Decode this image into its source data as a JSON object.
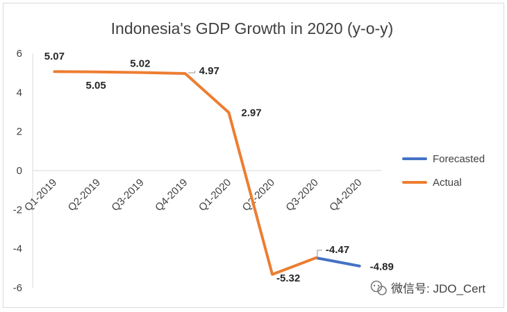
{
  "chart_data": {
    "type": "line",
    "title": "Indonesia's GDP Growth in 2020 (y-o-y)",
    "xlabel": "",
    "ylabel": "",
    "categories": [
      "Q1-2019",
      "Q2-2019",
      "Q3-2019",
      "Q4-2019",
      "Q1-2020",
      "Q2-2020",
      "Q3-2020",
      "Q4-2020"
    ],
    "ylim": [
      -6,
      6
    ],
    "yticks": [
      6,
      4,
      2,
      0,
      -2,
      -4,
      -6
    ],
    "grid": false,
    "legend_position": "right",
    "series": [
      {
        "name": "Forecasted",
        "color": "#4472c4",
        "values": [
          null,
          null,
          null,
          null,
          null,
          null,
          -4.47,
          -4.89
        ],
        "labels": [
          null,
          null,
          null,
          null,
          null,
          null,
          null,
          "-4.89"
        ]
      },
      {
        "name": "Actual",
        "color": "#ed7d31",
        "values": [
          5.07,
          5.05,
          5.02,
          4.97,
          2.97,
          -5.32,
          -4.47,
          null
        ],
        "labels": [
          "5.07",
          "5.05",
          "5.02",
          "4.97",
          "2.97",
          "-5.32",
          "-4.47",
          null
        ]
      }
    ]
  },
  "watermark": {
    "icon": "wechat-icon",
    "text": "微信号: JDO_Cert"
  }
}
